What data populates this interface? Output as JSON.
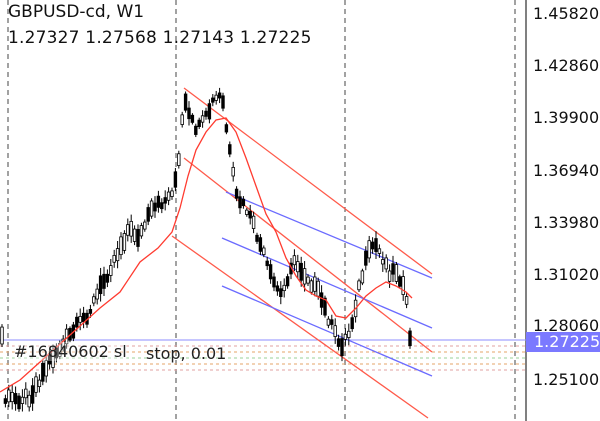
{
  "header": {
    "symbol": "GBPUSD-cd, W1",
    "ohlc": "1.27327 1.27568 1.27143 1.27225"
  },
  "price_axis": {
    "labels": [
      "1.45820",
      "1.42860",
      "1.39900",
      "1.36940",
      "1.33980",
      "1.31020",
      "1.28060",
      "1.25100"
    ],
    "current": "1.27225",
    "current_color": "#7b79ff"
  },
  "order": {
    "text": "#16840602 sl",
    "suffix": "stop, 0.01"
  },
  "colors": {
    "candle": "#000000",
    "ma": "#ff3b30",
    "channel_red": "#ff5a4a",
    "channel_blue": "#6b6bff"
  }
}
